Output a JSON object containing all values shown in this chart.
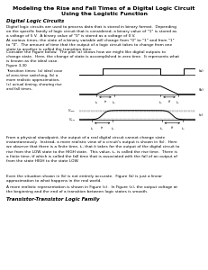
{
  "title": "Modeling the Rise and Fall Times of a Digital Logic Circuit\nUsing the Logistic Function",
  "background_color": "#ffffff",
  "text_color": "#000000",
  "section_heading": "Digital Logic Circuits",
  "figure_caption": "Figure 3-30\nTransition times: (a) ideal case\nof zero-time switching, (b) a\nmore realistic approximation,\n(c) actual timing, showing rise\nand fall times.",
  "section_heading2": "Transistor-Transistor Logic Family",
  "para1": "Digital logic circuits are used to process data that is stored in binary format.  Depending\non the specific family of logic circuit that is considered, a binary value of \"1\" is stored as\na voltage of 5 V.  A binary value of \"0\" is stored as a voltage of 0 V.",
  "para2": "At various times, the state of a binary variable will change from \"0\" to \"1\" and from \"1\"\nto \"0\".  The amount of time that the output of a logic circuit takes to change from one\nstate to another is called the transition time.",
  "para3": "Consider the Figure below.  The plot (a) shows how we might like digital outputs to\nchange state.  Here, the change of state is accomplished in zero time.  It represents what\nis known as the ideal case.",
  "para4": "From a physical standpoint, the output of a real digital circuit cannot change state\ninstantaneously.  Instead, a more realistic view of a circuit's output is shown in (b).  Here\nwe observe that there is a finite time, tᵣ, that it takes for the output of the digital circuit to\nrise from the LOW state to the HIGH state.  This value, tᵣ, is called the rise time.  There is\na finite time, tf which is called the fall time that is associated with the fall of an output of\nfrom the state HIGH to the state LOW.",
  "para5": "Even the situation shown in (b) is not entirely accurate.  Figure (b) is just a linear\napproximation to what happens in the real world.",
  "para6": "A more realistic representation is shown in Figure (c).  In Figure (c), the output voltage at\nthe beginning and the end of a transition between logic states is smooth.",
  "font_size_title": 4.5,
  "font_size_heading": 4.0,
  "font_size_body": 3.1,
  "font_size_caption": 2.9,
  "font_size_plot": 3.0
}
